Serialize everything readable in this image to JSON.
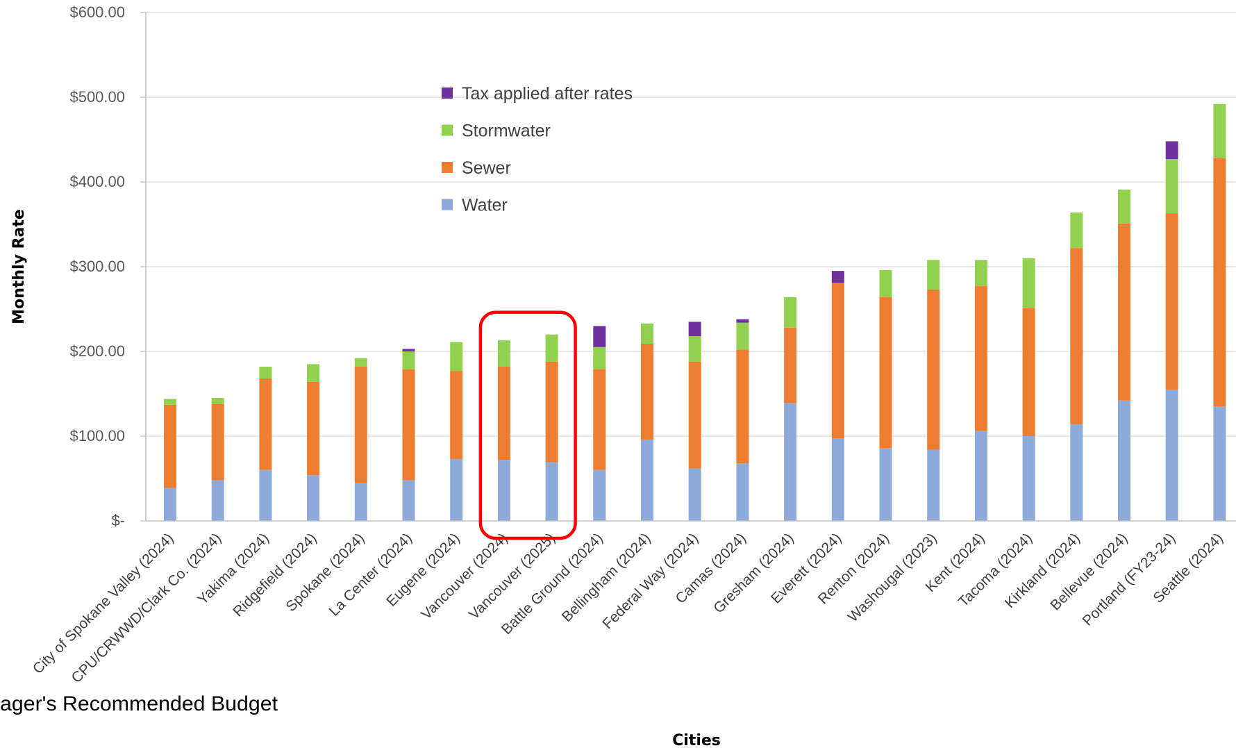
{
  "footer_text": "ager's Recommended Budget",
  "chart_data": {
    "type": "bar",
    "stacked": true,
    "xlabel": "Cities",
    "ylabel": "Monthly Rate",
    "ylim": [
      0,
      600
    ],
    "yticks": [
      0,
      100,
      200,
      300,
      400,
      500,
      600
    ],
    "ytick_labels": [
      "$-",
      "$100.00",
      "$200.00",
      "$300.00",
      "$400.00",
      "$500.00",
      "$600.00"
    ],
    "grid": true,
    "legend_placement": "upper-center",
    "highlight": {
      "categories": [
        "Vancouver (2024)",
        "Vancouver (2025)"
      ],
      "color": "#ff0000"
    },
    "categories": [
      "City of Spokane Valley (2024)",
      "CPU/CRWWD/Clark Co. (2024)",
      "Yakima (2024)",
      "Ridgefield (2024)",
      "Spokane (2024)",
      "La Center (2024)",
      "Eugene (2024)",
      "Vancouver (2024)",
      "Vancouver (2025)",
      "Battle Ground (2024)",
      "Bellingham (2024)",
      "Federal Way (2024)",
      "Camas (2024)",
      "Gresham (2024)",
      "Everett (2024)",
      "Renton (2024)",
      "Washougal (2023)",
      "Kent (2024)",
      "Tacoma (2024)",
      "Kirkland (2024)",
      "Bellevue (2024)",
      "Portland (FY23-24)",
      "Seattle (2024)"
    ],
    "series": [
      {
        "name": "Water",
        "color": "#8eaadb",
        "values": [
          39,
          48,
          60,
          54,
          45,
          48,
          73,
          72,
          69,
          60,
          96,
          62,
          68,
          139,
          97,
          86,
          84,
          106,
          100,
          114,
          142,
          155,
          135
        ]
      },
      {
        "name": "Sewer",
        "color": "#ed7d31",
        "values": [
          98,
          90,
          108,
          110,
          137,
          131,
          104,
          110,
          119,
          119,
          113,
          126,
          134,
          89,
          184,
          178,
          189,
          171,
          151,
          208,
          209,
          208,
          293
        ]
      },
      {
        "name": "Stormwater",
        "color": "#92d050",
        "values": [
          7,
          7,
          14,
          21,
          10,
          21,
          34,
          31,
          32,
          26,
          24,
          30,
          32,
          36,
          0,
          32,
          35,
          31,
          59,
          42,
          40,
          64,
          64
        ]
      },
      {
        "name": "Tax applied after rates",
        "color": "#7030a0",
        "values": [
          0,
          0,
          0,
          0,
          0,
          3,
          0,
          0,
          0,
          25,
          0,
          17,
          4,
          0,
          14,
          0,
          0,
          0,
          0,
          0,
          0,
          21,
          0
        ]
      }
    ]
  }
}
